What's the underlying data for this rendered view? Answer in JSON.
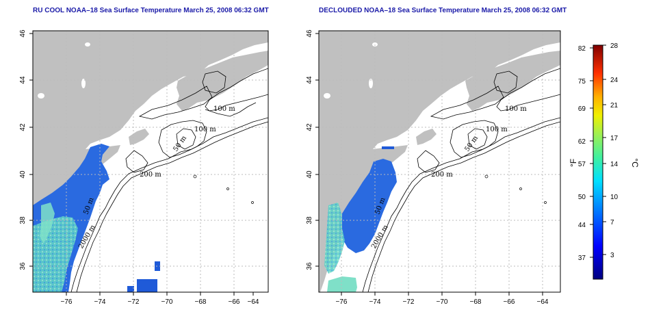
{
  "panels": [
    {
      "title": "RU COOL NOAA–18 Sea Surface Temperature March 25, 2008 06:32 GMT",
      "lon_ticks": [
        "−76",
        "−74",
        "−72",
        "−70",
        "−68",
        "−66",
        "−64"
      ],
      "lat_ticks": [
        "36",
        "38",
        "40",
        "42",
        "44",
        "46"
      ],
      "contour_labels": [
        "100 m",
        "100 m",
        "50 m",
        "200 m",
        "50 m",
        "2000 m"
      ]
    },
    {
      "title": "DECLOUDED NOAA–18 Sea Surface Temperature March 25, 2008 06:32 GMT",
      "lon_ticks": [
        "−76",
        "−74",
        "−72",
        "−70",
        "−68",
        "−66",
        "−64"
      ],
      "lat_ticks": [
        "36",
        "38",
        "40",
        "42",
        "44",
        "46"
      ],
      "contour_labels": [
        "100 m",
        "100 m",
        "50 m",
        "200 m",
        "50 m",
        "2000 m"
      ]
    }
  ],
  "colorbar": {
    "fahrenheit_label": "°F",
    "celsius_label": "°C",
    "fahrenheit_ticks": [
      "82",
      "75",
      "69",
      "62",
      "57",
      "50",
      "44",
      "37"
    ],
    "celsius_ticks": [
      "28",
      "24",
      "21",
      "17",
      "14",
      "10",
      "7",
      "3"
    ]
  },
  "colors": {
    "title": "#1a1aa8",
    "land": "#c0c0c0",
    "ocean": "#ffffff",
    "grid": "#bbbbbb",
    "contour": "#000000",
    "sst_cold": "#1f5ad8",
    "sst_warm": "#7fe0c8"
  }
}
